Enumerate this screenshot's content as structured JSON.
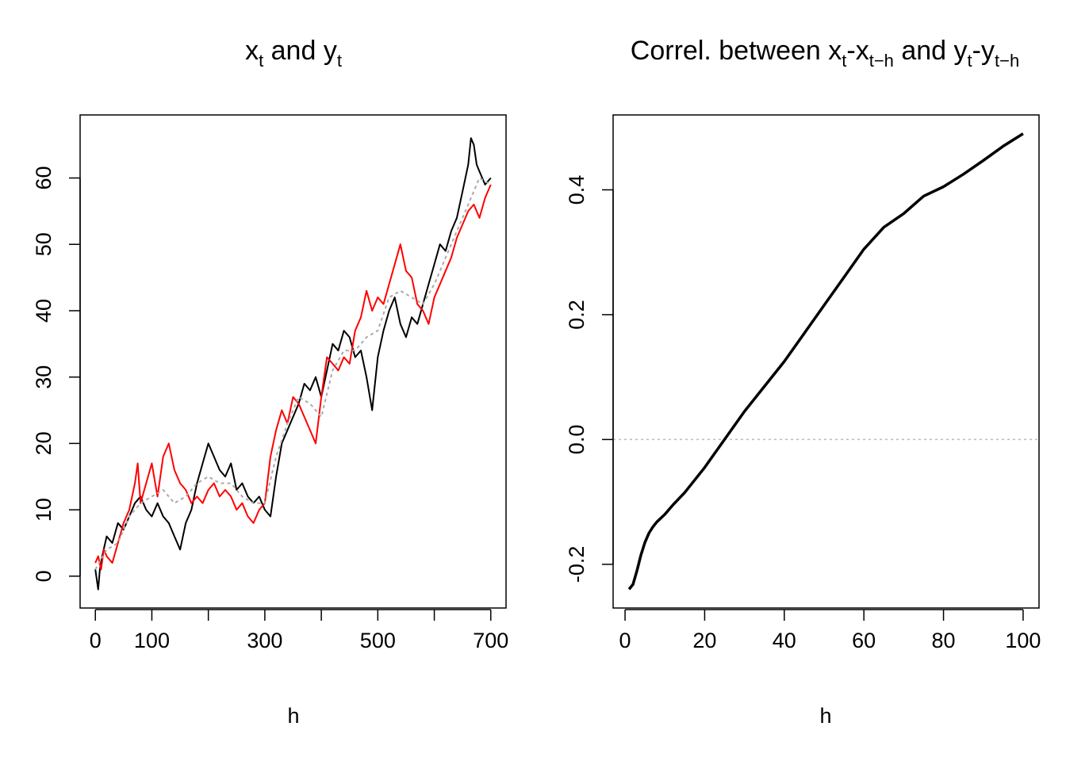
{
  "chart_data": [
    {
      "type": "line",
      "title": {
        "x": "x",
        "x_sub": "t",
        "and": " and ",
        "y": "y",
        "y_sub": "t"
      },
      "xlabel": "h",
      "ylabel": "",
      "xlim": [
        -27,
        727
      ],
      "ylim": [
        -4.8,
        69.5
      ],
      "xticks": [
        0,
        100,
        200,
        300,
        400,
        500,
        600,
        700
      ],
      "xtick_labels": [
        "0",
        "100",
        "",
        "300",
        "",
        "500",
        "",
        "700"
      ],
      "yticks": [
        0,
        10,
        20,
        30,
        40,
        50,
        60
      ],
      "ytick_labels": [
        "0",
        "10",
        "20",
        "30",
        "40",
        "50",
        "60"
      ],
      "grid": false,
      "series": [
        {
          "color": "#000000",
          "style": "solid",
          "x": [
            0,
            5,
            8,
            12,
            20,
            30,
            40,
            50,
            60,
            70,
            80,
            90,
            100,
            110,
            120,
            130,
            140,
            150,
            160,
            170,
            180,
            190,
            200,
            210,
            220,
            230,
            240,
            250,
            260,
            270,
            280,
            290,
            300,
            310,
            320,
            330,
            340,
            350,
            360,
            370,
            380,
            390,
            400,
            410,
            420,
            430,
            440,
            450,
            460,
            470,
            480,
            490,
            500,
            510,
            520,
            530,
            540,
            550,
            560,
            570,
            580,
            590,
            600,
            610,
            620,
            630,
            640,
            650,
            660,
            665,
            670,
            675,
            680,
            690,
            700
          ],
          "y": [
            1,
            -2,
            1,
            3,
            6,
            5,
            8,
            7,
            9,
            11,
            12,
            10,
            9,
            11,
            9,
            8,
            6,
            4,
            8,
            10,
            14,
            17,
            20,
            18,
            16,
            15,
            17,
            13,
            14,
            12,
            11,
            12,
            10,
            9,
            15,
            20,
            22,
            24,
            26,
            29,
            28,
            30,
            27,
            31,
            35,
            34,
            37,
            36,
            33,
            34,
            30,
            25,
            33,
            37,
            40,
            42,
            38,
            36,
            39,
            38,
            41,
            44,
            47,
            50,
            49,
            52,
            54,
            58,
            62,
            66,
            65,
            62,
            61,
            59,
            60
          ]
        },
        {
          "color": "#ff0000",
          "style": "solid",
          "x": [
            0,
            5,
            10,
            15,
            20,
            30,
            40,
            50,
            60,
            70,
            75,
            80,
            90,
            100,
            110,
            120,
            130,
            140,
            150,
            160,
            170,
            180,
            190,
            200,
            210,
            220,
            230,
            240,
            250,
            260,
            270,
            280,
            290,
            300,
            310,
            320,
            330,
            340,
            350,
            360,
            370,
            380,
            390,
            400,
            410,
            420,
            430,
            440,
            450,
            460,
            470,
            480,
            490,
            500,
            510,
            520,
            530,
            540,
            550,
            560,
            570,
            580,
            590,
            600,
            610,
            620,
            630,
            640,
            650,
            660,
            670,
            680,
            690,
            700
          ],
          "y": [
            2,
            3,
            1,
            4,
            3,
            2,
            5,
            8,
            10,
            14,
            17,
            11,
            14,
            17,
            12,
            18,
            20,
            16,
            14,
            13,
            11,
            12,
            11,
            13,
            14,
            12,
            13,
            12,
            10,
            11,
            9,
            8,
            10,
            11,
            18,
            22,
            25,
            23,
            27,
            26,
            24,
            22,
            20,
            27,
            33,
            32,
            31,
            33,
            32,
            37,
            39,
            43,
            40,
            42,
            41,
            44,
            47,
            50,
            46,
            45,
            41,
            40,
            38,
            42,
            44,
            46,
            48,
            51,
            53,
            55,
            56,
            54,
            57,
            59
          ]
        },
        {
          "color": "#aaaaaa",
          "style": "dotted",
          "x": [
            0,
            20,
            40,
            60,
            80,
            100,
            120,
            140,
            160,
            180,
            200,
            220,
            240,
            260,
            280,
            300,
            320,
            340,
            360,
            380,
            400,
            420,
            440,
            460,
            480,
            500,
            520,
            540,
            560,
            580,
            600,
            620,
            640,
            660,
            680,
            700
          ],
          "y": [
            1,
            4,
            5,
            9,
            11,
            12,
            13,
            11,
            12,
            14,
            15,
            14,
            14,
            12,
            11,
            11,
            18,
            23,
            27,
            26,
            24,
            31,
            34,
            34,
            36,
            37,
            42,
            43,
            42,
            41,
            44,
            48,
            52,
            56,
            60,
            59
          ]
        }
      ]
    },
    {
      "type": "line",
      "title": {
        "p1": "Correl. between x",
        "s1": "t",
        "p2": "-x",
        "s2": "t−h",
        "p3": " and y",
        "s3": "t",
        "p4": "-y",
        "s4": "t−h"
      },
      "xlabel": "h",
      "ylabel": "",
      "xlim": [
        -3,
        104
      ],
      "ylim": [
        -0.27,
        0.52
      ],
      "xticks": [
        0,
        20,
        40,
        60,
        80,
        100
      ],
      "xtick_labels": [
        "0",
        "20",
        "40",
        "60",
        "80",
        "100"
      ],
      "yticks": [
        -0.2,
        0.0,
        0.2,
        0.4
      ],
      "ytick_labels": [
        "-0.2",
        "0.0",
        "0.2",
        "0.4"
      ],
      "grid": false,
      "reference_line": {
        "y": 0,
        "color": "#bbbbbb",
        "style": "dotted"
      },
      "series": [
        {
          "color": "#000000",
          "style": "solid",
          "x": [
            1,
            2,
            3,
            4,
            5,
            6,
            7,
            8,
            10,
            12,
            15,
            20,
            25,
            30,
            35,
            40,
            45,
            50,
            55,
            60,
            65,
            70,
            75,
            80,
            85,
            90,
            95,
            100
          ],
          "y": [
            -0.24,
            -0.232,
            -0.21,
            -0.185,
            -0.165,
            -0.15,
            -0.14,
            -0.132,
            -0.12,
            -0.105,
            -0.085,
            -0.045,
            0.0,
            0.045,
            0.085,
            0.125,
            0.17,
            0.215,
            0.26,
            0.305,
            0.34,
            0.362,
            0.39,
            0.405,
            0.425,
            0.447,
            0.47,
            0.49
          ]
        }
      ]
    }
  ]
}
